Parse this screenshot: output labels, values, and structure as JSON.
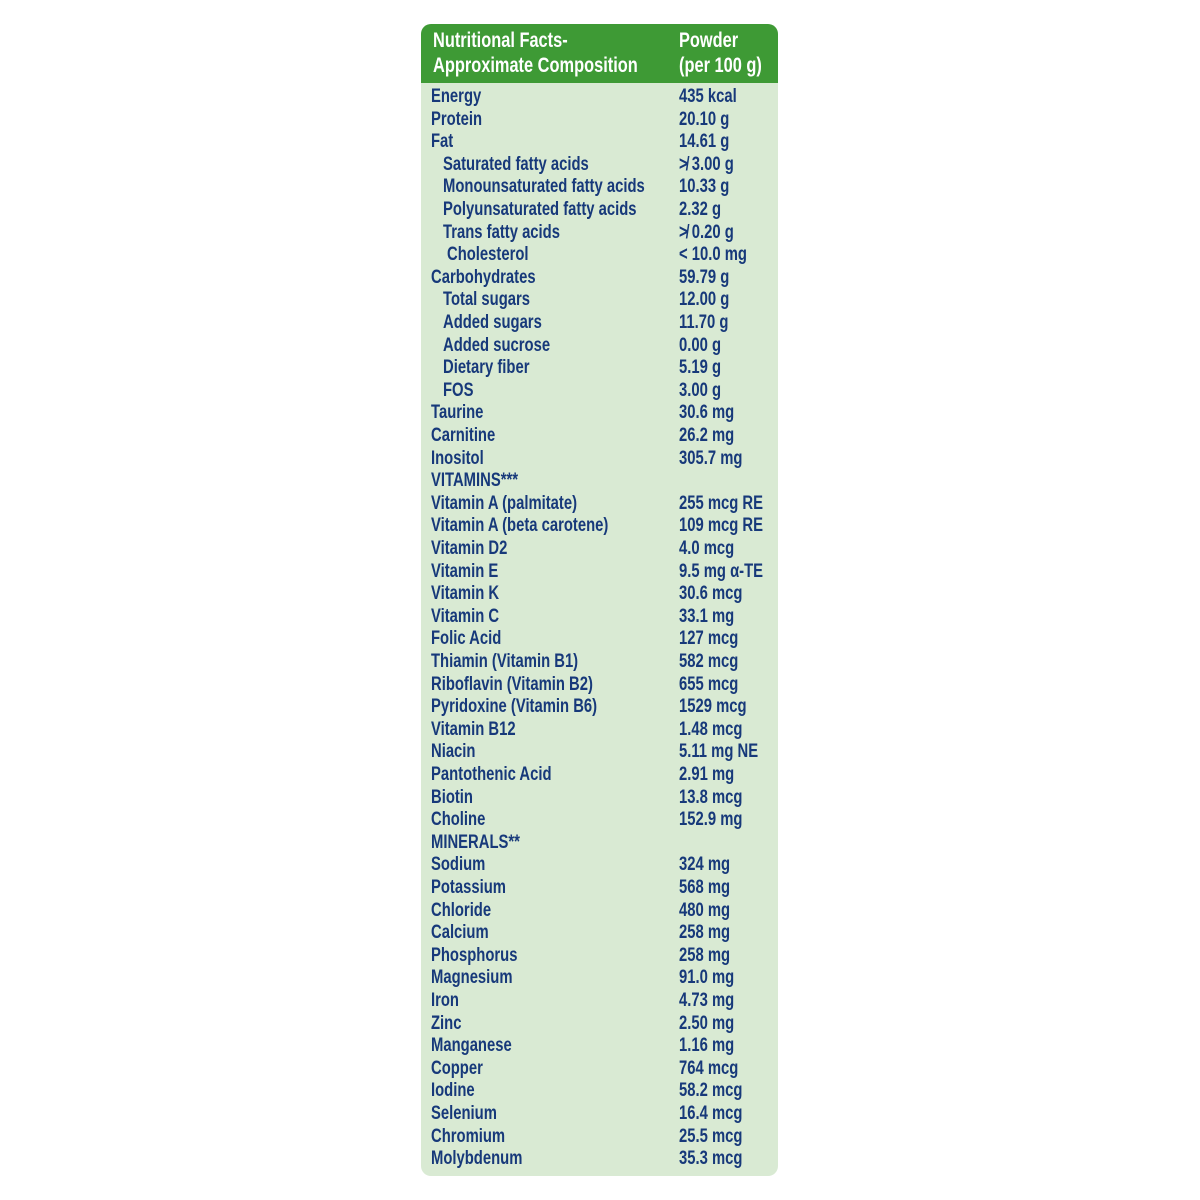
{
  "header": {
    "col1_line1": "Nutritional Facts-",
    "col1_line2": "Approximate Composition",
    "col2_line1": "Powder",
    "col2_line2": "(per 100 g)"
  },
  "colors": {
    "header_bg": "#3e9a35",
    "body_bg": "#d9ead3",
    "text": "#17397a"
  },
  "rows": [
    {
      "name": "Energy",
      "value": "435 kcal",
      "indent": 0
    },
    {
      "name": "Protein",
      "value": "20.10 g",
      "indent": 0
    },
    {
      "name": "Fat",
      "value": "14.61 g",
      "indent": 0
    },
    {
      "name": "Saturated fatty acids",
      "value": "≯ 3.00 g",
      "indent": 1
    },
    {
      "name": "Monounsaturated fatty acids",
      "value": "10.33 g",
      "indent": 1
    },
    {
      "name": "Polyunsaturated fatty acids",
      "value": "2.32 g",
      "indent": 1
    },
    {
      "name": "Trans fatty acids",
      "value": "≯ 0.20 g",
      "indent": 1
    },
    {
      "name": "Cholesterol",
      "value": "< 10.0 mg",
      "indent": 2
    },
    {
      "name": "Carbohydrates",
      "value": "59.79 g",
      "indent": 0
    },
    {
      "name": "Total sugars",
      "value": "12.00 g",
      "indent": 1
    },
    {
      "name": "Added sugars",
      "value": "11.70 g",
      "indent": 1
    },
    {
      "name": "Added sucrose",
      "value": "0.00 g",
      "indent": 1
    },
    {
      "name": "Dietary fiber",
      "value": "5.19 g",
      "indent": 1
    },
    {
      "name": "FOS",
      "value": "3.00 g",
      "indent": 1
    },
    {
      "name": "Taurine",
      "value": "30.6 mg",
      "indent": 0
    },
    {
      "name": "Carnitine",
      "value": "26.2 mg",
      "indent": 0
    },
    {
      "name": "Inositol",
      "value": "305.7 mg",
      "indent": 0
    },
    {
      "name": "VITAMINS***",
      "value": "",
      "indent": 0
    },
    {
      "name": "Vitamin A (palmitate)",
      "value": "255 mcg RE",
      "indent": 0
    },
    {
      "name": "Vitamin A (beta carotene)",
      "value": "109 mcg RE",
      "indent": 0
    },
    {
      "name": "Vitamin D2",
      "value": "4.0 mcg",
      "indent": 0
    },
    {
      "name": "Vitamin E",
      "value": "9.5 mg α-TE",
      "indent": 0
    },
    {
      "name": "Vitamin K",
      "value": "30.6 mcg",
      "indent": 0
    },
    {
      "name": "Vitamin C",
      "value": "33.1 mg",
      "indent": 0
    },
    {
      "name": "Folic Acid",
      "value": "127 mcg",
      "indent": 0
    },
    {
      "name": "Thiamin (Vitamin B1)",
      "value": "582 mcg",
      "indent": 0
    },
    {
      "name": "Riboflavin (Vitamin B2)",
      "value": "655 mcg",
      "indent": 0
    },
    {
      "name": "Pyridoxine (Vitamin B6)",
      "value": "1529 mcg",
      "indent": 0
    },
    {
      "name": "Vitamin B12",
      "value": "1.48 mcg",
      "indent": 0
    },
    {
      "name": "Niacin",
      "value": "5.11 mg NE",
      "indent": 0
    },
    {
      "name": "Pantothenic Acid",
      "value": "2.91 mg",
      "indent": 0
    },
    {
      "name": "Biotin",
      "value": "13.8 mcg",
      "indent": 0
    },
    {
      "name": "Choline",
      "value": "152.9 mg",
      "indent": 0
    },
    {
      "name": "MINERALS**",
      "value": "",
      "indent": 0
    },
    {
      "name": "Sodium",
      "value": "324 mg",
      "indent": 0
    },
    {
      "name": "Potassium",
      "value": "568 mg",
      "indent": 0
    },
    {
      "name": "Chloride",
      "value": "480 mg",
      "indent": 0
    },
    {
      "name": "Calcium",
      "value": "258 mg",
      "indent": 0
    },
    {
      "name": "Phosphorus",
      "value": "258 mg",
      "indent": 0
    },
    {
      "name": "Magnesium",
      "value": "91.0 mg",
      "indent": 0
    },
    {
      "name": "Iron",
      "value": "4.73 mg",
      "indent": 0
    },
    {
      "name": "Zinc",
      "value": "2.50 mg",
      "indent": 0
    },
    {
      "name": "Manganese",
      "value": "1.16 mg",
      "indent": 0
    },
    {
      "name": "Copper",
      "value": "764 mcg",
      "indent": 0
    },
    {
      "name": "Iodine",
      "value": "58.2 mcg",
      "indent": 0
    },
    {
      "name": "Selenium",
      "value": "16.4 mcg",
      "indent": 0
    },
    {
      "name": "Chromium",
      "value": "25.5 mcg",
      "indent": 0
    },
    {
      "name": "Molybdenum",
      "value": "35.3 mcg",
      "indent": 0
    }
  ]
}
